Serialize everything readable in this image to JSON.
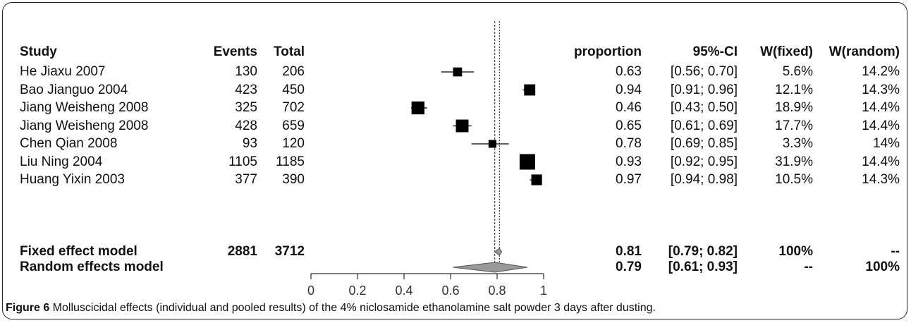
{
  "chart_data": {
    "type": "forest",
    "headers": {
      "study": "Study",
      "events": "Events",
      "total": "Total",
      "proportion": "proportion",
      "ci": "95%-CI",
      "w_fixed": "W(fixed)",
      "w_random": "W(random)"
    },
    "studies": [
      {
        "study": "He Jiaxu 2007",
        "events": "130",
        "total": "206",
        "proportion": "0.63",
        "ci": "[0.56; 0.70]",
        "w_fixed": "5.6%",
        "w_random": "14.2%",
        "est": 0.63,
        "lo": 0.56,
        "hi": 0.7,
        "weight": 5.6
      },
      {
        "study": "Bao Jianguo 2004",
        "events": "423",
        "total": "450",
        "proportion": "0.94",
        "ci": "[0.91; 0.96]",
        "w_fixed": "12.1%",
        "w_random": "14.3%",
        "est": 0.94,
        "lo": 0.91,
        "hi": 0.96,
        "weight": 12.1
      },
      {
        "study": "Jiang Weisheng 2008",
        "events": "325",
        "total": "702",
        "proportion": "0.46",
        "ci": "[0.43; 0.50]",
        "w_fixed": "18.9%",
        "w_random": "14.4%",
        "est": 0.46,
        "lo": 0.43,
        "hi": 0.5,
        "weight": 18.9
      },
      {
        "study": "Jiang Weisheng 2008",
        "events": "428",
        "total": "659",
        "proportion": "0.65",
        "ci": "[0.61; 0.69]",
        "w_fixed": "17.7%",
        "w_random": "14.4%",
        "est": 0.65,
        "lo": 0.61,
        "hi": 0.69,
        "weight": 17.7
      },
      {
        "study": "Chen Qian 2008",
        "events": "93",
        "total": "120",
        "proportion": "0.78",
        "ci": "[0.69; 0.85]",
        "w_fixed": "3.3%",
        "w_random": "14%",
        "est": 0.78,
        "lo": 0.69,
        "hi": 0.85,
        "weight": 3.3
      },
      {
        "study": "Liu Ning 2004",
        "events": "1105",
        "total": "1185",
        "proportion": "0.93",
        "ci": "[0.92; 0.95]",
        "w_fixed": "31.9%",
        "w_random": "14.4%",
        "est": 0.93,
        "lo": 0.92,
        "hi": 0.95,
        "weight": 31.9
      },
      {
        "study": "Huang Yixin 2003",
        "events": "377",
        "total": "390",
        "proportion": "0.97",
        "ci": "[0.94; 0.98]",
        "w_fixed": "10.5%",
        "w_random": "14.3%",
        "est": 0.97,
        "lo": 0.94,
        "hi": 0.98,
        "weight": 10.5
      }
    ],
    "pooled": [
      {
        "study": "Fixed effect model",
        "events": "2881",
        "total": "3712",
        "proportion": "0.81",
        "ci": "[0.79; 0.82]",
        "w_fixed": "100%",
        "w_random": "--",
        "est": 0.81,
        "lo": 0.79,
        "hi": 0.82
      },
      {
        "study": "Random effects model",
        "events": "",
        "total": "",
        "proportion": "0.79",
        "ci": "[0.61; 0.93]",
        "w_fixed": "--",
        "w_random": "100%",
        "est": 0.79,
        "lo": 0.61,
        "hi": 0.93
      }
    ],
    "xlim": [
      0,
      1
    ],
    "ticks": [
      "0",
      "0.2",
      "0.4",
      "0.6",
      "0.8",
      "1"
    ],
    "tick_values": [
      0,
      0.2,
      0.4,
      0.6,
      0.8,
      1
    ],
    "reference_line": 0.81,
    "pooled_line": 0.79
  },
  "caption": {
    "lead": "Figure 6",
    "text": " Molluscicidal effects (individual and pooled results) of the 4% niclosamide ethanolamine salt powder 3 days after dusting",
    "end": "."
  }
}
